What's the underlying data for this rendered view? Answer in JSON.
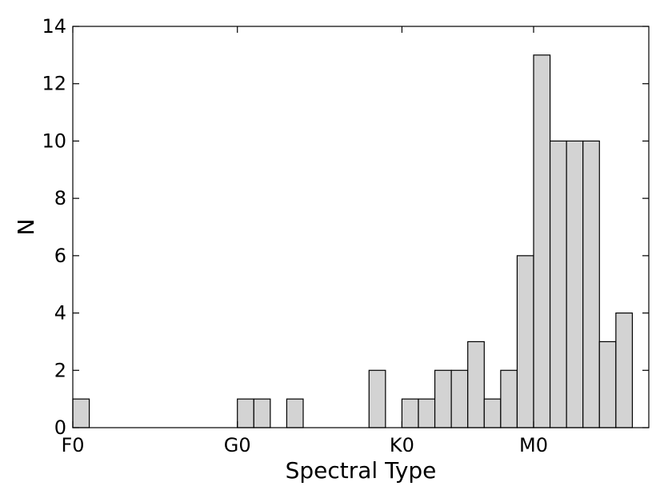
{
  "chart_data": {
    "type": "bar",
    "title": "",
    "xlabel": "Spectral Type",
    "ylabel": "N",
    "bin_width": 1,
    "xlim": [
      0,
      35
    ],
    "ylim": [
      0,
      14
    ],
    "x_ticks": [
      {
        "value": 0,
        "label": "F0"
      },
      {
        "value": 10,
        "label": "G0"
      },
      {
        "value": 20,
        "label": "K0"
      },
      {
        "value": 28,
        "label": "M0"
      }
    ],
    "y_ticks": [
      0,
      2,
      4,
      6,
      8,
      10,
      12,
      14
    ],
    "bins": [
      {
        "x": 0,
        "value": 1
      },
      {
        "x": 10,
        "value": 1
      },
      {
        "x": 11,
        "value": 1
      },
      {
        "x": 13,
        "value": 1
      },
      {
        "x": 18,
        "value": 2
      },
      {
        "x": 20,
        "value": 1
      },
      {
        "x": 21,
        "value": 1
      },
      {
        "x": 22,
        "value": 2
      },
      {
        "x": 23,
        "value": 2
      },
      {
        "x": 24,
        "value": 3
      },
      {
        "x": 25,
        "value": 1
      },
      {
        "x": 26,
        "value": 2
      },
      {
        "x": 27,
        "value": 6
      },
      {
        "x": 28,
        "value": 13
      },
      {
        "x": 29,
        "value": 10
      },
      {
        "x": 30,
        "value": 10
      },
      {
        "x": 31,
        "value": 10
      },
      {
        "x": 32,
        "value": 3
      },
      {
        "x": 33,
        "value": 4
      }
    ],
    "bar_color": "#d3d3d3",
    "edge_color": "#000000",
    "grid": false,
    "legend": "none"
  }
}
